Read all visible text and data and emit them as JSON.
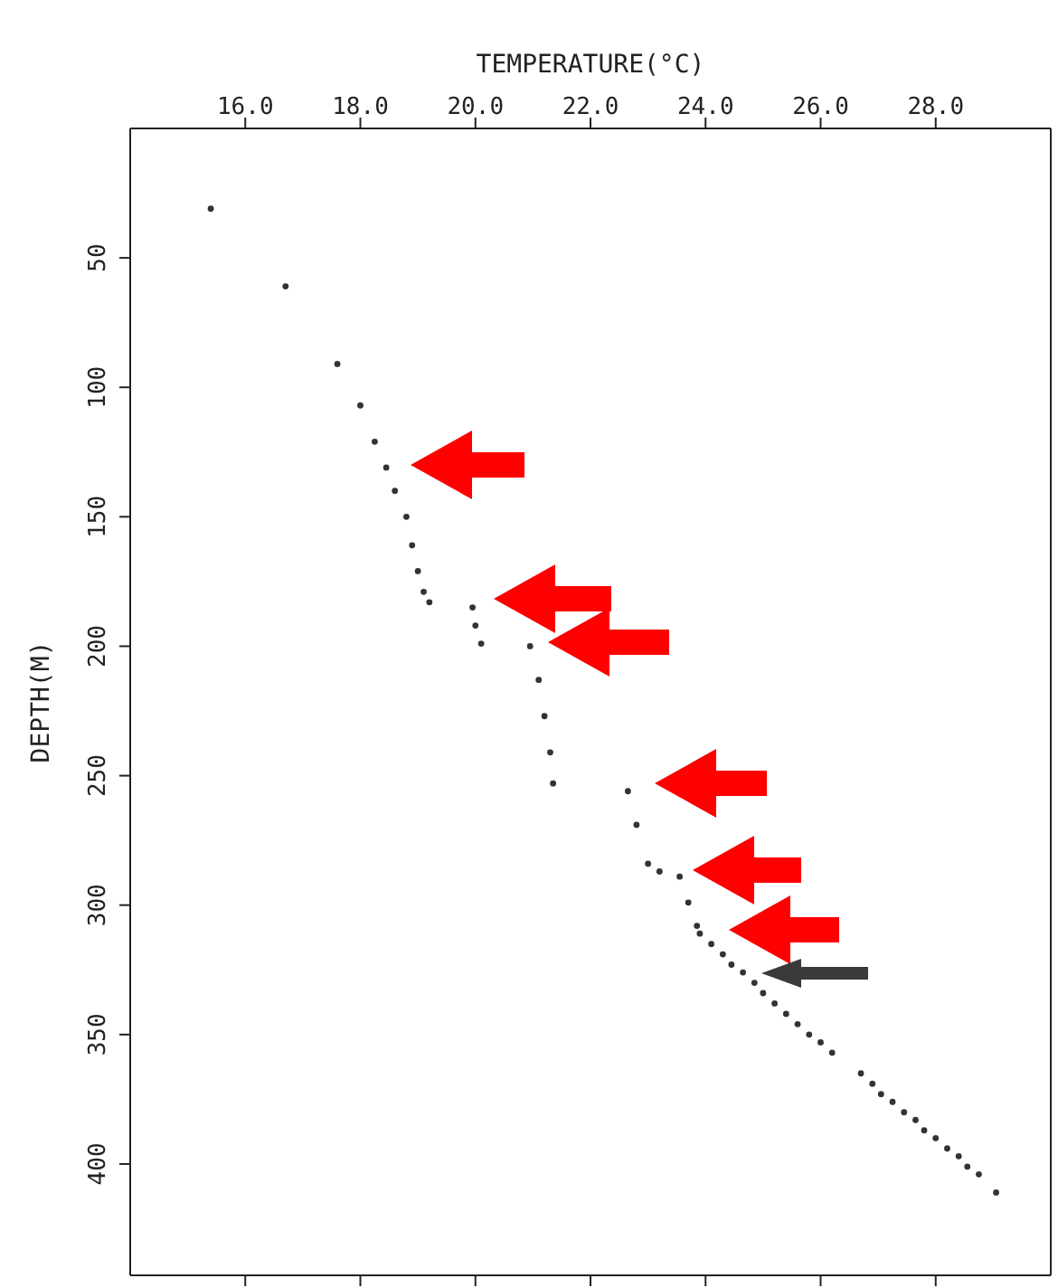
{
  "chart_data": {
    "type": "scatter",
    "xlabel": "TEMPERATURE(°C)",
    "ylabel": "DEPTH(M)",
    "xlim": [
      14,
      30
    ],
    "xticks": [
      {
        "value": 16,
        "label": "16.0"
      },
      {
        "value": 18,
        "label": "18.0"
      },
      {
        "value": 20,
        "label": "20.0"
      },
      {
        "value": 22,
        "label": "22.0"
      },
      {
        "value": 24,
        "label": "24.0"
      },
      {
        "value": 26,
        "label": "26.0"
      },
      {
        "value": 28,
        "label": "28.0"
      }
    ],
    "ylim": [
      443,
      0
    ],
    "yticks": [
      50,
      100,
      150,
      200,
      250,
      300,
      350,
      400
    ],
    "marker": "circle",
    "legend": false,
    "series": [
      {
        "color": "#333333",
        "x": [
          15.4,
          16.7,
          17.6,
          18.0,
          18.25,
          18.45,
          18.6,
          18.8,
          18.9,
          19.0,
          19.1,
          19.2,
          19.95,
          20.0,
          20.1,
          20.95,
          21.1,
          21.2,
          21.3,
          21.35,
          22.65,
          22.8,
          23.0,
          23.2,
          23.55,
          23.7,
          23.85,
          23.9,
          24.1,
          24.3,
          24.45,
          24.65,
          24.85,
          25.0,
          25.2,
          25.4,
          25.6,
          25.8,
          26.0,
          26.2,
          26.7,
          26.9,
          27.05,
          27.25,
          27.45,
          27.65,
          27.8,
          28.0,
          28.2,
          28.4,
          28.55,
          28.75,
          29.05
        ],
        "values": [
          31,
          61,
          91,
          107,
          121,
          131,
          140,
          150,
          161,
          171,
          179,
          183,
          185,
          192,
          199,
          200,
          213,
          227,
          241,
          253,
          256,
          269,
          284,
          287,
          289,
          299,
          308,
          311,
          315,
          319,
          323,
          326,
          330,
          334,
          338,
          342,
          346,
          350,
          353,
          357,
          365,
          369,
          373,
          376,
          380,
          383,
          387,
          390,
          394,
          397,
          401,
          404,
          411
        ]
      }
    ]
  }
}
